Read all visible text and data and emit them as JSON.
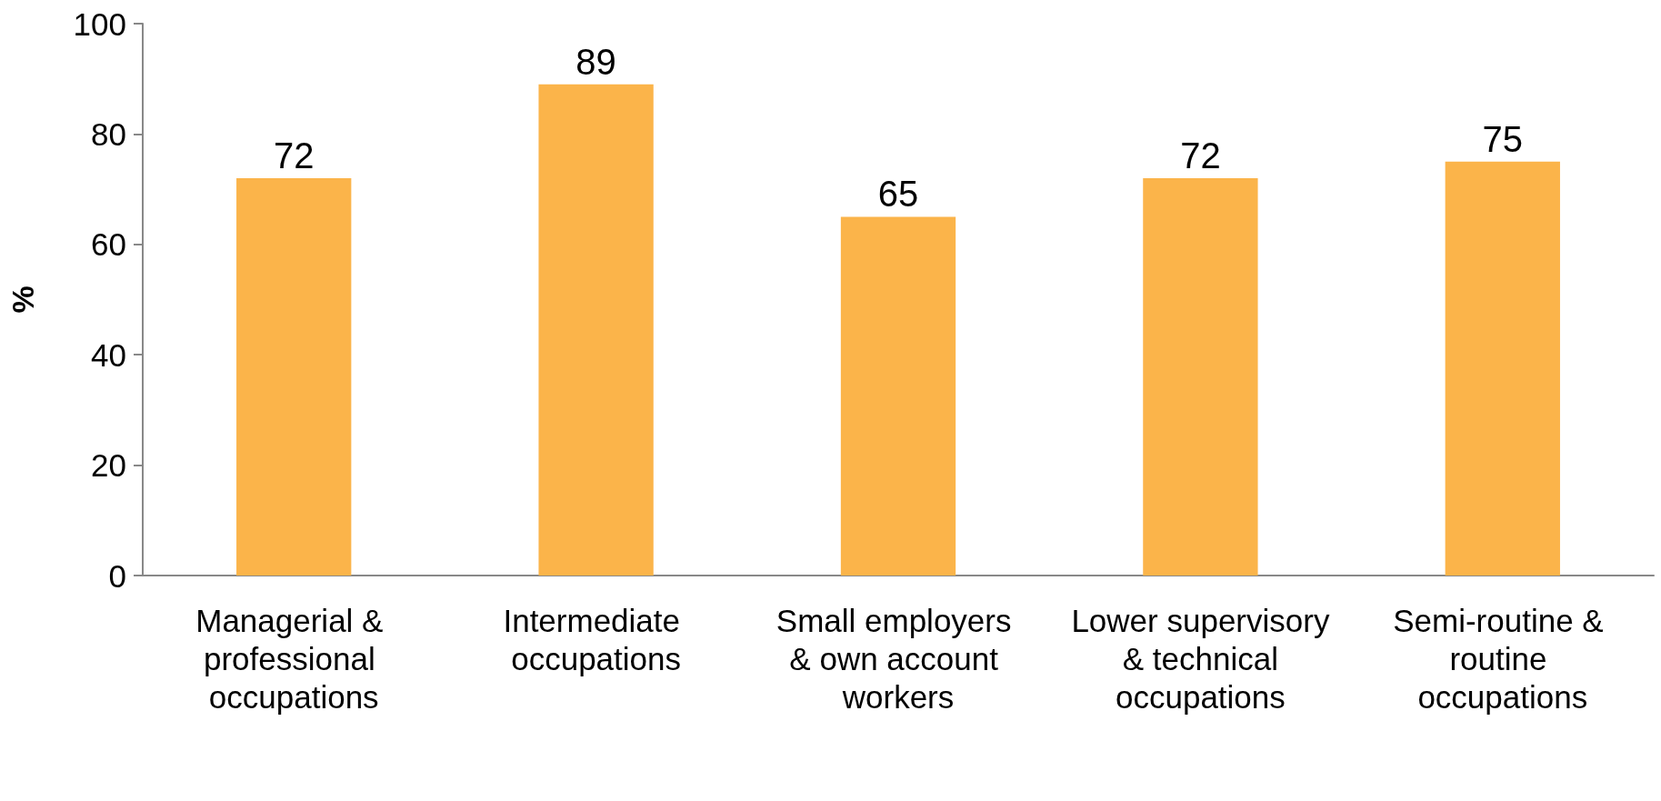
{
  "chart_data": {
    "type": "bar",
    "ylabel": "%",
    "categories": [
      "Managerial & professional occupations",
      "Intermediate occupations",
      "Small employers & own account workers",
      "Lower supervisory & technical occupations",
      "Semi-routine & routine occupations"
    ],
    "values": [
      72,
      89,
      65,
      72,
      75
    ],
    "color": "#fbb44a",
    "data_labels": true,
    "ylim": [
      0,
      100
    ],
    "yticks": [
      0,
      20,
      40,
      60,
      80,
      100
    ],
    "grid": false
  }
}
